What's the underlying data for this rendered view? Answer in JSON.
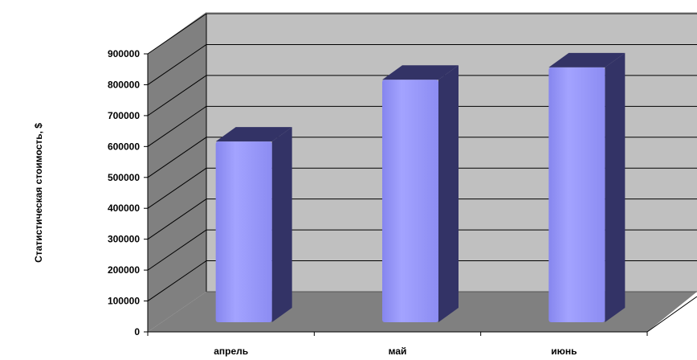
{
  "chart_data": {
    "type": "bar",
    "categories": [
      "апрель",
      "май",
      "июнь"
    ],
    "values": [
      585000,
      785000,
      825000
    ],
    "ylabel": "Статистическая стоимость, $",
    "ylim": [
      0,
      900000
    ],
    "yticks": [
      "0",
      "100000",
      "200000",
      "300000",
      "400000",
      "500000",
      "600000",
      "700000",
      "800000",
      "900000"
    ],
    "grid": true,
    "legend": "none",
    "colors": {
      "bar_front": "#9999ff",
      "bar_side": "#333366",
      "bar_top": "#333366",
      "back_wall": "#c0c0c0",
      "side_wall": "#808080",
      "floor": "#808080",
      "grid": "#000000"
    }
  }
}
